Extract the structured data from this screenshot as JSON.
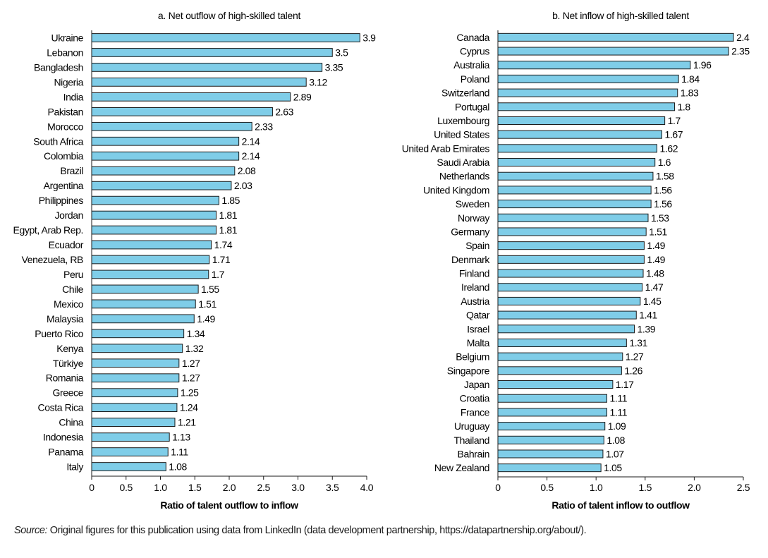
{
  "chart_data": [
    {
      "type": "bar",
      "orientation": "horizontal",
      "title": "a. Net outflow of high-skilled talent",
      "xlabel": "Ratio of talent outflow to inflow",
      "xlim": [
        0,
        4.0
      ],
      "xticks": [
        "0",
        "0.5",
        "1.0",
        "1.5",
        "2.0",
        "2.5",
        "3.0",
        "3.5",
        "4.0"
      ],
      "categories": [
        "Ukraine",
        "Lebanon",
        "Bangladesh",
        "Nigeria",
        "India",
        "Pakistan",
        "Morocco",
        "South Africa",
        "Colombia",
        "Brazil",
        "Argentina",
        "Philippines",
        "Jordan",
        "Egypt, Arab Rep.",
        "Ecuador",
        "Venezuela, RB",
        "Peru",
        "Chile",
        "Mexico",
        "Malaysia",
        "Puerto Rico",
        "Kenya",
        "Türkiye",
        "Romania",
        "Greece",
        "Costa Rica",
        "China",
        "Indonesia",
        "Panama",
        "Italy"
      ],
      "values": [
        3.9,
        3.5,
        3.35,
        3.12,
        2.89,
        2.63,
        2.33,
        2.14,
        2.14,
        2.08,
        2.03,
        1.85,
        1.81,
        1.81,
        1.74,
        1.71,
        1.7,
        1.55,
        1.51,
        1.49,
        1.34,
        1.32,
        1.27,
        1.27,
        1.25,
        1.24,
        1.21,
        1.13,
        1.11,
        1.08
      ],
      "bar_color": "#7fcde8"
    },
    {
      "type": "bar",
      "orientation": "horizontal",
      "title": "b. Net inflow of high-skilled talent",
      "xlabel": "Ratio of talent inflow to outflow",
      "xlim": [
        0,
        2.5
      ],
      "xticks": [
        "0",
        "0.5",
        "1.0",
        "1.5",
        "2.0",
        "2.5"
      ],
      "categories": [
        "Canada",
        "Cyprus",
        "Australia",
        "Poland",
        "Switzerland",
        "Portugal",
        "Luxembourg",
        "United States",
        "United Arab Emirates",
        "Saudi Arabia",
        "Netherlands",
        "United Kingdom",
        "Sweden",
        "Norway",
        "Germany",
        "Spain",
        "Denmark",
        "Finland",
        "Ireland",
        "Austria",
        "Qatar",
        "Israel",
        "Malta",
        "Belgium",
        "Singapore",
        "Japan",
        "Croatia",
        "France",
        "Uruguay",
        "Thailand",
        "Bahrain",
        "New Zealand"
      ],
      "values": [
        2.4,
        2.35,
        1.96,
        1.84,
        1.83,
        1.8,
        1.7,
        1.67,
        1.62,
        1.6,
        1.58,
        1.56,
        1.56,
        1.53,
        1.51,
        1.49,
        1.49,
        1.48,
        1.47,
        1.45,
        1.41,
        1.39,
        1.31,
        1.27,
        1.26,
        1.17,
        1.11,
        1.11,
        1.09,
        1.08,
        1.07,
        1.05
      ],
      "bar_color": "#7fcde8"
    }
  ],
  "source": {
    "label": "Source:",
    "text": " Original figures for this publication using data from LinkedIn (data development partnership, https://datapartnership.org/about/)."
  }
}
